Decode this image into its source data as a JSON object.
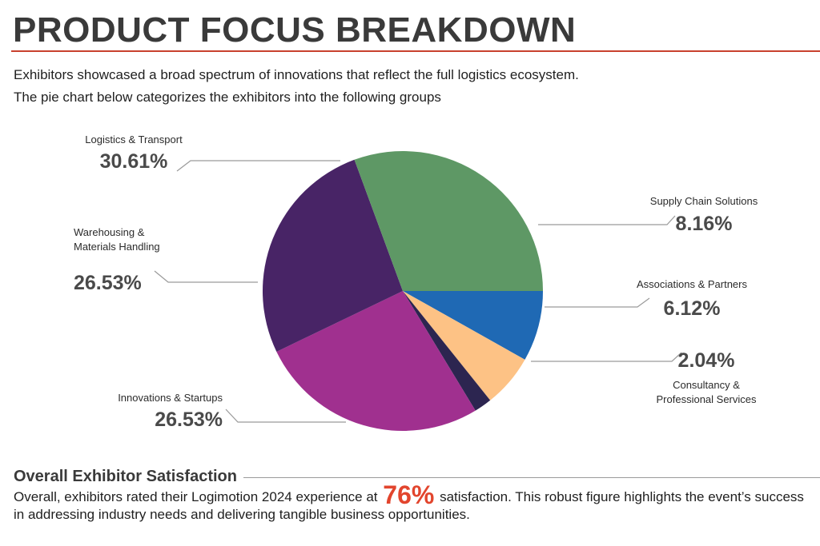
{
  "title": "PRODUCT FOCUS BREAKDOWN",
  "intro": {
    "line1": "Exhibitors showcased a broad spectrum of innovations that reflect the full logistics ecosystem.",
    "line2": "The pie chart below categorizes the exhibitors into the following groups"
  },
  "chart_data": {
    "type": "pie",
    "title": "",
    "slices": [
      {
        "name": "Supply Chain Solutions",
        "lines": [
          "Supply Chain Solutions"
        ],
        "value": 8.16,
        "label": "8.16%",
        "color": "#1f69b4"
      },
      {
        "name": "Associations & Partners",
        "lines": [
          "Associations & Partners"
        ],
        "value": 6.12,
        "label": "6.12%",
        "color": "#fdc285"
      },
      {
        "name": "Consultancy & Professional Services",
        "lines": [
          "Consultancy &",
          "Professional Services"
        ],
        "value": 2.04,
        "label": "2.04%",
        "color": "#2c2550"
      },
      {
        "name": "Innovations & Startups",
        "lines": [
          "Innovations & Startups"
        ],
        "value": 26.53,
        "label": "26.53%",
        "color": "#a0308f"
      },
      {
        "name": "Warehousing & Materials Handling",
        "lines": [
          "Warehousing &",
          "Materials Handling"
        ],
        "value": 26.53,
        "label": "26.53%",
        "color": "#482466"
      },
      {
        "name": "Logistics & Transport",
        "lines": [
          "Logistics & Transport"
        ],
        "value": 30.61,
        "label": "30.61%",
        "color": "#5e9865"
      }
    ]
  },
  "satisfaction": {
    "heading": "Overall Exhibitor Satisfaction",
    "text_before": "Overall, exhibitors rated their Logimotion 2024 experience at",
    "highlight": "76%",
    "text_after": "satisfaction. This robust figure highlights the event’s success in addressing industry needs and delivering tangible business opportunities."
  }
}
